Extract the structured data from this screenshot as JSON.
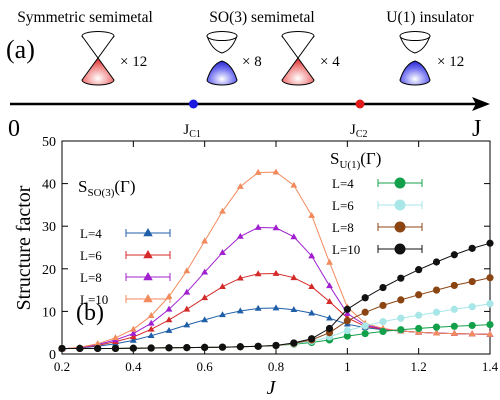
{
  "top": {
    "label": "(a)",
    "phases": [
      {
        "name": "Symmetric semimetal",
        "count": "× 12"
      },
      {
        "name": "SO(3) semimetal",
        "count": "× 8"
      },
      {
        "count": "× 4"
      },
      {
        "name": "U(1) insulator",
        "count": "× 12"
      }
    ],
    "axis": {
      "start": "0",
      "end": "J",
      "points": [
        {
          "label": "J",
          "sub": "C1",
          "value": 0.52,
          "color": "#1a1ae0"
        },
        {
          "label": "J",
          "sub": "C2",
          "value": 1.05,
          "color": "#e01a1a"
        }
      ]
    },
    "cone_colors": {
      "red": "#e02020",
      "blue": "#2020d0"
    }
  },
  "chart_data": {
    "type": "line",
    "panel_label": "(b)",
    "xlabel": "J",
    "ylabel": "Structure factor",
    "xlim": [
      0.2,
      1.4
    ],
    "ylim": [
      0,
      50
    ],
    "xticks": [
      "0.2",
      "0.4",
      "0.6",
      "0.8",
      "1",
      "1.2",
      "1.4"
    ],
    "yticks": [
      "0",
      "10",
      "20",
      "30",
      "40",
      "50"
    ],
    "legends": [
      {
        "title": "S",
        "title_sub": "SO(3)",
        "title_suffix": "(Γ)",
        "entries": [
          "L=4",
          "L=6",
          "L=8",
          "L=10"
        ]
      },
      {
        "title": "S",
        "title_sub": "U(1)",
        "title_suffix": "(Γ)",
        "entries": [
          "L=4",
          "L=6",
          "L=8",
          "L=10"
        ]
      }
    ],
    "x": [
      0.2,
      0.25,
      0.3,
      0.35,
      0.4,
      0.45,
      0.5,
      0.55,
      0.6,
      0.65,
      0.7,
      0.75,
      0.8,
      0.85,
      0.9,
      0.95,
      1.0,
      1.05,
      1.1,
      1.15,
      1.2,
      1.25,
      1.3,
      1.35,
      1.4
    ],
    "so3_series": [
      {
        "name": "L=4",
        "color": "#1f5fa8",
        "values": [
          1.2,
          1.4,
          1.8,
          2.4,
          3.2,
          4.3,
          5.5,
          6.8,
          8.0,
          9.2,
          10.1,
          10.7,
          10.8,
          10.4,
          9.6,
          8.4,
          7.0,
          6.2,
          5.7,
          5.4,
          5.1,
          4.9,
          4.8,
          4.7,
          4.6
        ]
      },
      {
        "name": "L=6",
        "color": "#d42a2a",
        "values": [
          1.2,
          1.5,
          2.0,
          2.9,
          4.0,
          5.8,
          8.0,
          10.5,
          13.2,
          15.8,
          17.8,
          18.8,
          18.9,
          17.9,
          15.8,
          12.3,
          8.5,
          6.5,
          5.8,
          5.4,
          5.1,
          4.9,
          4.8,
          4.7,
          4.6
        ]
      },
      {
        "name": "L=8",
        "color": "#a020d0",
        "values": [
          1.2,
          1.5,
          2.2,
          3.3,
          4.8,
          7.2,
          10.5,
          14.5,
          19.2,
          23.8,
          27.6,
          29.7,
          29.6,
          27.5,
          23.0,
          16.0,
          9.5,
          6.8,
          5.9,
          5.4,
          5.1,
          4.9,
          4.8,
          4.7,
          4.6
        ]
      },
      {
        "name": "L=10",
        "color": "#f28a5c",
        "values": [
          1.2,
          1.6,
          2.4,
          3.8,
          5.8,
          9.0,
          13.5,
          19.5,
          26.5,
          33.5,
          39.3,
          42.6,
          42.7,
          39.6,
          32.5,
          21.5,
          11.0,
          7.2,
          6.0,
          5.4,
          5.1,
          4.9,
          4.8,
          4.7,
          4.6
        ]
      }
    ],
    "u1_series": [
      {
        "name": "L=4",
        "color": "#13a04a",
        "values": [
          1.3,
          1.3,
          1.3,
          1.3,
          1.35,
          1.4,
          1.45,
          1.5,
          1.55,
          1.6,
          1.7,
          1.8,
          2.0,
          2.3,
          2.7,
          3.3,
          4.2,
          4.8,
          5.3,
          5.7,
          6.0,
          6.3,
          6.5,
          6.7,
          6.9
        ]
      },
      {
        "name": "L=6",
        "color": "#a8e6e8",
        "values": [
          1.3,
          1.3,
          1.3,
          1.3,
          1.35,
          1.4,
          1.45,
          1.5,
          1.55,
          1.6,
          1.7,
          1.8,
          2.0,
          2.4,
          3.0,
          4.0,
          5.5,
          6.6,
          7.6,
          8.4,
          9.1,
          9.8,
          10.5,
          11.1,
          11.8
        ]
      },
      {
        "name": "L=8",
        "color": "#8b4513",
        "values": [
          1.3,
          1.3,
          1.3,
          1.3,
          1.35,
          1.4,
          1.45,
          1.5,
          1.55,
          1.6,
          1.7,
          1.8,
          2.0,
          2.5,
          3.3,
          5.0,
          7.8,
          9.8,
          11.4,
          12.7,
          13.9,
          15.0,
          16.1,
          17.0,
          17.9
        ]
      },
      {
        "name": "L=10",
        "color": "#111111",
        "values": [
          1.3,
          1.3,
          1.3,
          1.3,
          1.35,
          1.4,
          1.45,
          1.5,
          1.55,
          1.6,
          1.7,
          1.8,
          2.0,
          2.6,
          3.6,
          6.0,
          10.5,
          13.2,
          15.6,
          17.8,
          19.8,
          21.6,
          23.3,
          24.8,
          26.0
        ]
      }
    ]
  }
}
